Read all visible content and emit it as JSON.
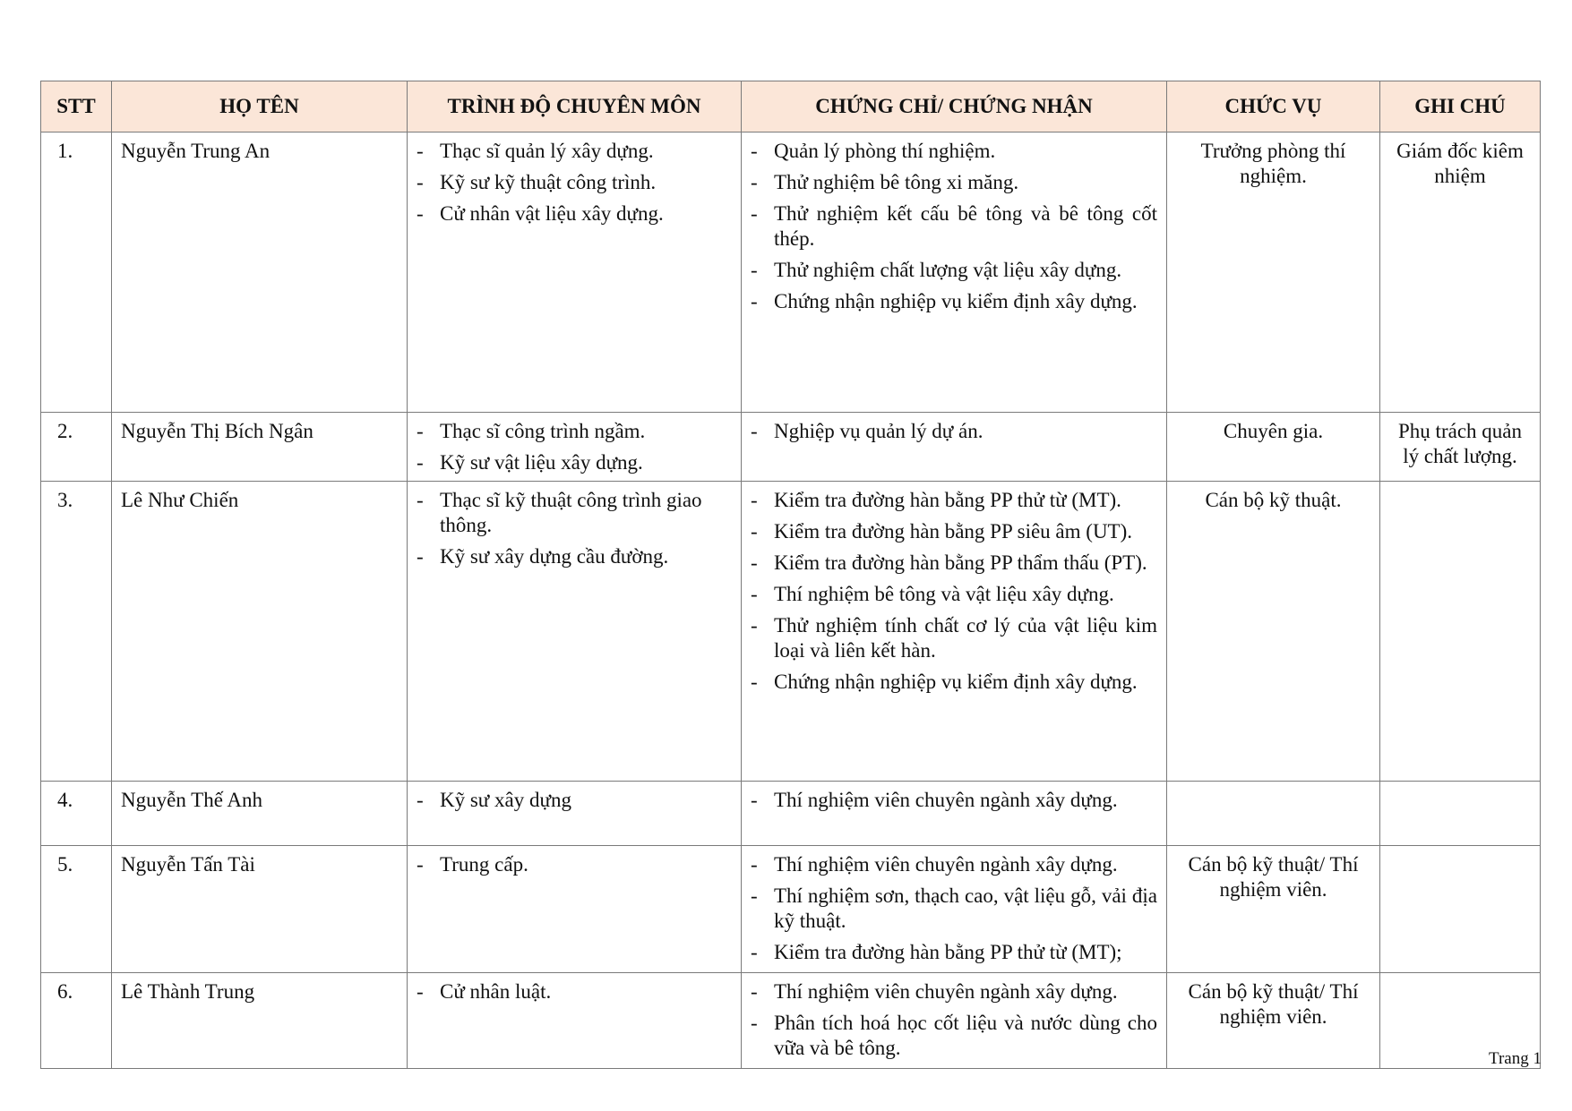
{
  "headers": [
    "STT",
    "HỌ TÊN",
    "TRÌNH ĐỘ CHUYÊN MÔN",
    "CHỨNG CHỈ/ CHỨNG NHẬN",
    "CHỨC VỤ",
    "GHI CHÚ"
  ],
  "header_bg": "#fbe6d8",
  "rows": [
    {
      "stt": "1.",
      "name": "Nguyễn Trung An",
      "qualifications": [
        "Thạc sĩ quản lý xây dựng.",
        "Kỹ sư kỹ thuật công trình.",
        "Cử nhân vật liệu xây dựng."
      ],
      "certificates": [
        "Quản lý phòng thí nghiệm.",
        "Thử nghiệm bê tông xi măng.",
        "Thử nghiệm kết cấu bê tông và bê tông cốt thép.",
        "Thử nghiệm chất lượng vật liệu xây dựng.",
        "Chứng nhận nghiệp vụ kiểm định xây dựng."
      ],
      "position": "Trưởng phòng thí nghiệm.",
      "note": "Giám đốc kiêm nhiệm"
    },
    {
      "stt": "2.",
      "name": "Nguyễn Thị Bích Ngân",
      "qualifications": [
        "Thạc sĩ công trình ngầm.",
        "Kỹ sư vật liệu xây dựng."
      ],
      "certificates": [
        "Nghiệp vụ quản lý dự án."
      ],
      "position": "Chuyên gia.",
      "note": "Phụ trách quản lý chất lượng."
    },
    {
      "stt": "3.",
      "name": "Lê Như Chiến",
      "qualifications": [
        "Thạc sĩ kỹ thuật công trình giao thông.",
        "Kỹ sư xây dựng cầu đường."
      ],
      "certificates": [
        "Kiểm tra đường hàn bằng PP thử từ (MT).",
        "Kiểm tra đường hàn bằng PP siêu âm (UT).",
        "Kiểm tra đường hàn bằng PP thẩm thấu (PT).",
        "Thí nghiệm bê tông và vật liệu xây dựng.",
        "Thử nghiệm tính chất cơ lý của vật liệu kim loại và liên kết hàn.",
        "Chứng nhận nghiệp vụ kiểm định xây dựng."
      ],
      "position": "Cán bộ kỹ thuật.",
      "note": ""
    },
    {
      "stt": "4.",
      "name": "Nguyễn Thế Anh",
      "qualifications": [
        "Kỹ sư xây dựng"
      ],
      "certificates": [
        "Thí nghiệm viên chuyên ngành xây dựng."
      ],
      "position": "",
      "note": ""
    },
    {
      "stt": "5.",
      "name": "Nguyễn Tấn Tài",
      "qualifications": [
        "Trung cấp."
      ],
      "certificates": [
        "Thí nghiệm viên chuyên ngành xây dựng.",
        "Thí nghiệm sơn, thạch cao, vật liệu gỗ, vải địa kỹ thuật.",
        "Kiểm tra đường hàn bằng PP thử từ (MT);"
      ],
      "position": "Cán bộ kỹ thuật/ Thí nghiệm viên.",
      "note": ""
    },
    {
      "stt": "6.",
      "name": "Lê Thành Trung",
      "qualifications": [
        "Cử nhân luật."
      ],
      "certificates": [
        "Thí nghiệm viên chuyên ngành xây dựng.",
        "Phân tích hoá học cốt liệu và nước dùng cho vữa và bê tông."
      ],
      "position": "Cán bộ kỹ thuật/ Thí nghiệm viên.",
      "note": ""
    }
  ],
  "footer": "Trang 1"
}
